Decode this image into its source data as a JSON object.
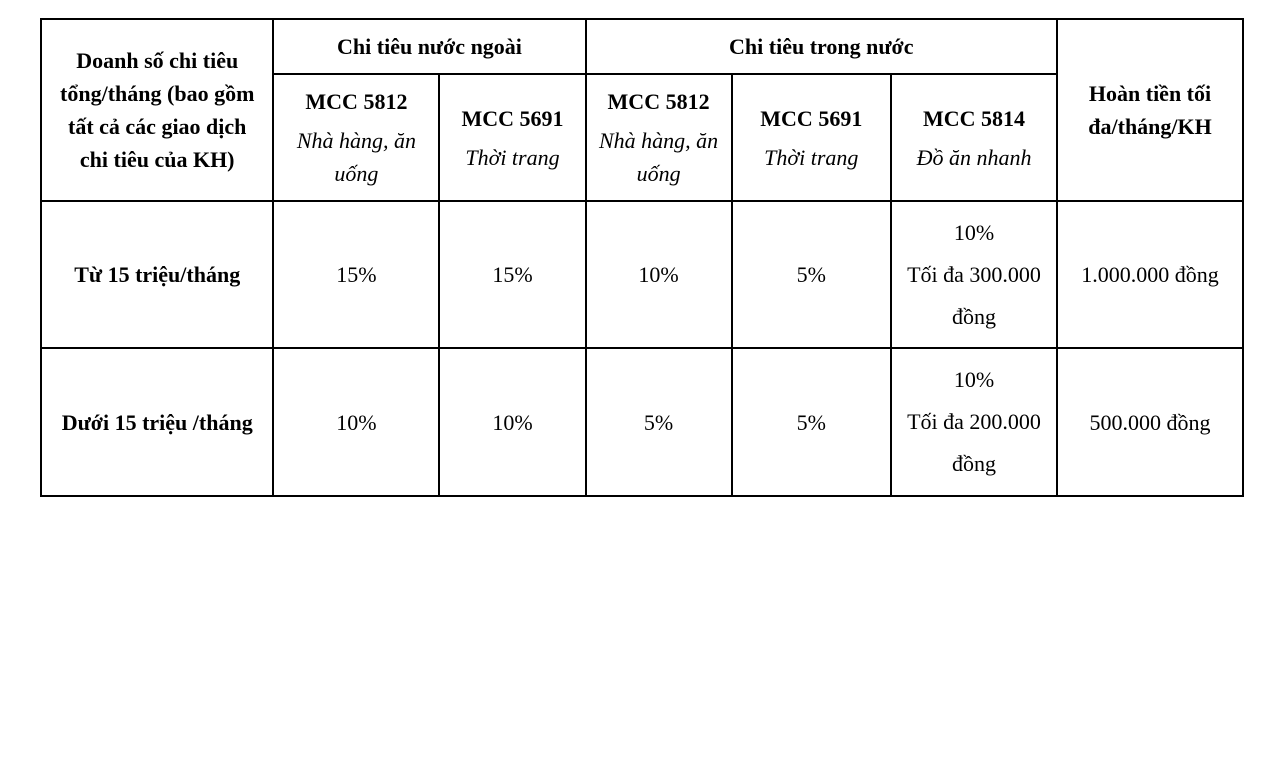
{
  "table": {
    "border_color": "#000000",
    "background_color": "#ffffff",
    "text_color": "#000000",
    "font_family": "Times New Roman",
    "base_fontsize_pt": 16,
    "column_widths_pct": [
      17.5,
      12.5,
      11,
      11,
      12,
      12.5,
      14
    ],
    "header": {
      "row_label": "Doanh số chi tiêu tổng/tháng (bao gồm tất cả các giao dịch chi tiêu của KH)",
      "group_foreign": "Chi tiêu nước ngoài",
      "group_domestic": "Chi tiêu trong nước",
      "refund_label": "Hoàn tiền tối đa/tháng/KH",
      "sub": {
        "foreign_5812_code": "MCC 5812",
        "foreign_5812_desc": "Nhà hàng, ăn uống",
        "foreign_5691_code": "MCC 5691",
        "foreign_5691_desc": "Thời trang",
        "domestic_5812_code": "MCC 5812",
        "domestic_5812_desc": "Nhà hàng, ăn uống",
        "domestic_5691_code": "MCC 5691",
        "domestic_5691_desc": "Thời trang",
        "domestic_5814_code": "MCC 5814",
        "domestic_5814_desc": "Đồ ăn nhanh"
      }
    },
    "rows": [
      {
        "label": "Từ 15 triệu/tháng",
        "foreign_5812": "15%",
        "foreign_5691": "15%",
        "domestic_5812": "10%",
        "domestic_5691": "5%",
        "domestic_5814_pct": "10%",
        "domestic_5814_cap": "Tối đa 300.000 đồng",
        "refund": "1.000.000 đồng"
      },
      {
        "label": "Dưới 15 triệu /tháng",
        "foreign_5812": "10%",
        "foreign_5691": "10%",
        "domestic_5812": "5%",
        "domestic_5691": "5%",
        "domestic_5814_pct": "10%",
        "domestic_5814_cap": "Tối đa 200.000 đồng",
        "refund": "500.000 đồng"
      }
    ]
  }
}
